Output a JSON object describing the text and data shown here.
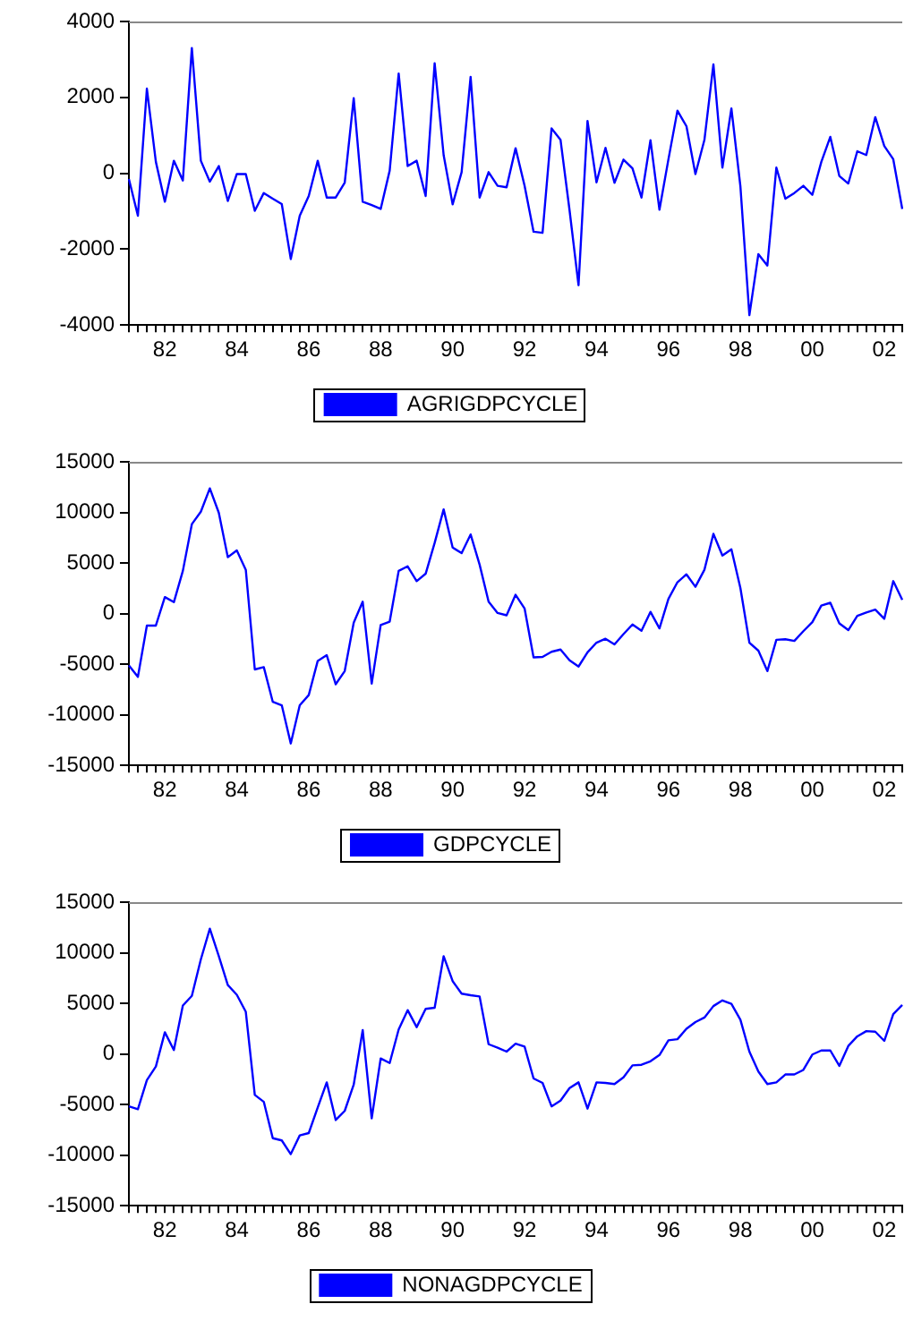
{
  "chart_data": [
    {
      "type": "line",
      "legend": "bottom",
      "marker": "none",
      "line_style": "solid",
      "categories": [
        null,
        null,
        null,
        null,
        "82",
        null,
        null,
        null,
        null,
        null,
        null,
        null,
        "84",
        null,
        null,
        null,
        null,
        null,
        null,
        null,
        "86",
        null,
        null,
        null,
        null,
        null,
        null,
        null,
        "88",
        null,
        null,
        null,
        null,
        null,
        null,
        null,
        "90",
        null,
        null,
        null,
        null,
        null,
        null,
        null,
        "92",
        null,
        null,
        null,
        null,
        null,
        null,
        null,
        "94",
        null,
        null,
        null,
        null,
        null,
        null,
        null,
        "96",
        null,
        null,
        null,
        null,
        null,
        null,
        null,
        "98",
        null,
        null,
        null,
        null,
        null,
        null,
        null,
        "00",
        null,
        null,
        null,
        null,
        null,
        null,
        null,
        "02",
        null,
        null
      ],
      "ylim": [
        -4000,
        4000
      ],
      "yticks": [
        -4000,
        -2000,
        0,
        2000,
        4000
      ],
      "series": [
        {
          "name": "AGRIGDPCYCLE",
          "color": "#0000ff",
          "values": [
            -150,
            -1120,
            2230,
            300,
            -750,
            330,
            -190,
            3300,
            330,
            -220,
            190,
            -730,
            -20,
            -20,
            -990,
            -520,
            -670,
            -810,
            -2260,
            -1120,
            -600,
            330,
            -640,
            -640,
            -250,
            1980,
            -750,
            -840,
            -940,
            70,
            2630,
            190,
            330,
            -600,
            2900,
            480,
            -820,
            30,
            2540,
            -640,
            30,
            -330,
            -370,
            660,
            -330,
            -1540,
            -1570,
            1180,
            880,
            -970,
            -2950,
            1380,
            -240,
            670,
            -250,
            360,
            130,
            -640,
            870,
            -960,
            370,
            1650,
            1240,
            -20,
            880,
            2870,
            150,
            1710,
            -340,
            -3740,
            -2130,
            -2430,
            150,
            -670,
            -520,
            -330,
            -570,
            300,
            960,
            -70,
            -270,
            580,
            480,
            1480,
            720,
            370,
            -940
          ]
        }
      ]
    },
    {
      "type": "line",
      "legend": "bottom",
      "marker": "none",
      "line_style": "solid",
      "categories": [
        null,
        null,
        null,
        null,
        "82",
        null,
        null,
        null,
        null,
        null,
        null,
        null,
        "84",
        null,
        null,
        null,
        null,
        null,
        null,
        null,
        "86",
        null,
        null,
        null,
        null,
        null,
        null,
        null,
        "88",
        null,
        null,
        null,
        null,
        null,
        null,
        null,
        "90",
        null,
        null,
        null,
        null,
        null,
        null,
        null,
        "92",
        null,
        null,
        null,
        null,
        null,
        null,
        null,
        "94",
        null,
        null,
        null,
        null,
        null,
        null,
        null,
        "96",
        null,
        null,
        null,
        null,
        null,
        null,
        null,
        "98",
        null,
        null,
        null,
        null,
        null,
        null,
        null,
        "00",
        null,
        null,
        null,
        null,
        null,
        null,
        null,
        "02",
        null,
        null
      ],
      "ylim": [
        -15000,
        15000
      ],
      "yticks": [
        -15000,
        -10000,
        -5000,
        0,
        5000,
        10000,
        15000
      ],
      "series": [
        {
          "name": "GDPCYCLE",
          "color": "#0000ff",
          "values": [
            -5120,
            -6250,
            -1180,
            -1180,
            1630,
            1130,
            4220,
            8840,
            10070,
            12380,
            9960,
            5570,
            6250,
            4330,
            -5520,
            -5290,
            -8720,
            -9060,
            -12830,
            -9060,
            -8050,
            -4670,
            -4110,
            -6980,
            -5680,
            -900,
            1180,
            -6920,
            -1130,
            -790,
            4220,
            4670,
            3210,
            3940,
            6980,
            10300,
            6530,
            5970,
            7820,
            4840,
            1180,
            60,
            -170,
            1860,
            510,
            -4330,
            -4280,
            -3770,
            -3550,
            -4610,
            -5230,
            -3830,
            -2870,
            -2480,
            -3040,
            -2030,
            -1070,
            -1690,
            170,
            -1460,
            1460,
            3100,
            3880,
            2650,
            4330,
            7880,
            5740,
            6360,
            2530,
            -2870,
            -3660,
            -5680,
            -2590,
            -2530,
            -2700,
            -1740,
            -840,
            790,
            1070,
            -960,
            -1630,
            -230,
            110,
            390,
            -510,
            3210,
            1350
          ]
        }
      ]
    },
    {
      "type": "line",
      "legend": "bottom",
      "marker": "none",
      "line_style": "solid",
      "categories": [
        null,
        null,
        null,
        null,
        "82",
        null,
        null,
        null,
        null,
        null,
        null,
        null,
        "84",
        null,
        null,
        null,
        null,
        null,
        null,
        null,
        "86",
        null,
        null,
        null,
        null,
        null,
        null,
        null,
        "88",
        null,
        null,
        null,
        null,
        null,
        null,
        null,
        "90",
        null,
        null,
        null,
        null,
        null,
        null,
        null,
        "92",
        null,
        null,
        null,
        null,
        null,
        null,
        null,
        "94",
        null,
        null,
        null,
        null,
        null,
        null,
        null,
        "96",
        null,
        null,
        null,
        null,
        null,
        null,
        null,
        "98",
        null,
        null,
        null,
        null,
        null,
        null,
        null,
        "00",
        null,
        null,
        null,
        null,
        null,
        null,
        null,
        "02",
        null,
        null
      ],
      "ylim": [
        -15000,
        15000
      ],
      "yticks": [
        -15000,
        -10000,
        -5000,
        0,
        5000,
        10000,
        15000
      ],
      "series": [
        {
          "name": "NONAGDPCYCLE",
          "color": "#0000ff",
          "values": [
            -5180,
            -5460,
            -2590,
            -1240,
            2140,
            390,
            4780,
            5740,
            9340,
            12380,
            9660,
            6810,
            5850,
            4160,
            -4050,
            -4730,
            -8330,
            -8550,
            -9900,
            -8050,
            -7820,
            -5290,
            -2810,
            -6530,
            -5630,
            -3040,
            2360,
            -6360,
            -450,
            -900,
            2420,
            4330,
            2650,
            4450,
            4560,
            9660,
            7200,
            5960,
            5800,
            5680,
            960,
            620,
            230,
            1010,
            730,
            -2420,
            -2870,
            -5180,
            -4610,
            -3380,
            -2810,
            -5400,
            -2810,
            -2870,
            -2980,
            -2310,
            -1130,
            -1070,
            -730,
            -110,
            1350,
            1460,
            2480,
            3150,
            3600,
            4730,
            5290,
            4950,
            3380,
            230,
            -1740,
            -2980,
            -2810,
            -2030,
            -2030,
            -1580,
            -60,
            340,
            340,
            -1180,
            790,
            1740,
            2250,
            2200,
            1290,
            3940,
            4840
          ]
        }
      ]
    }
  ]
}
